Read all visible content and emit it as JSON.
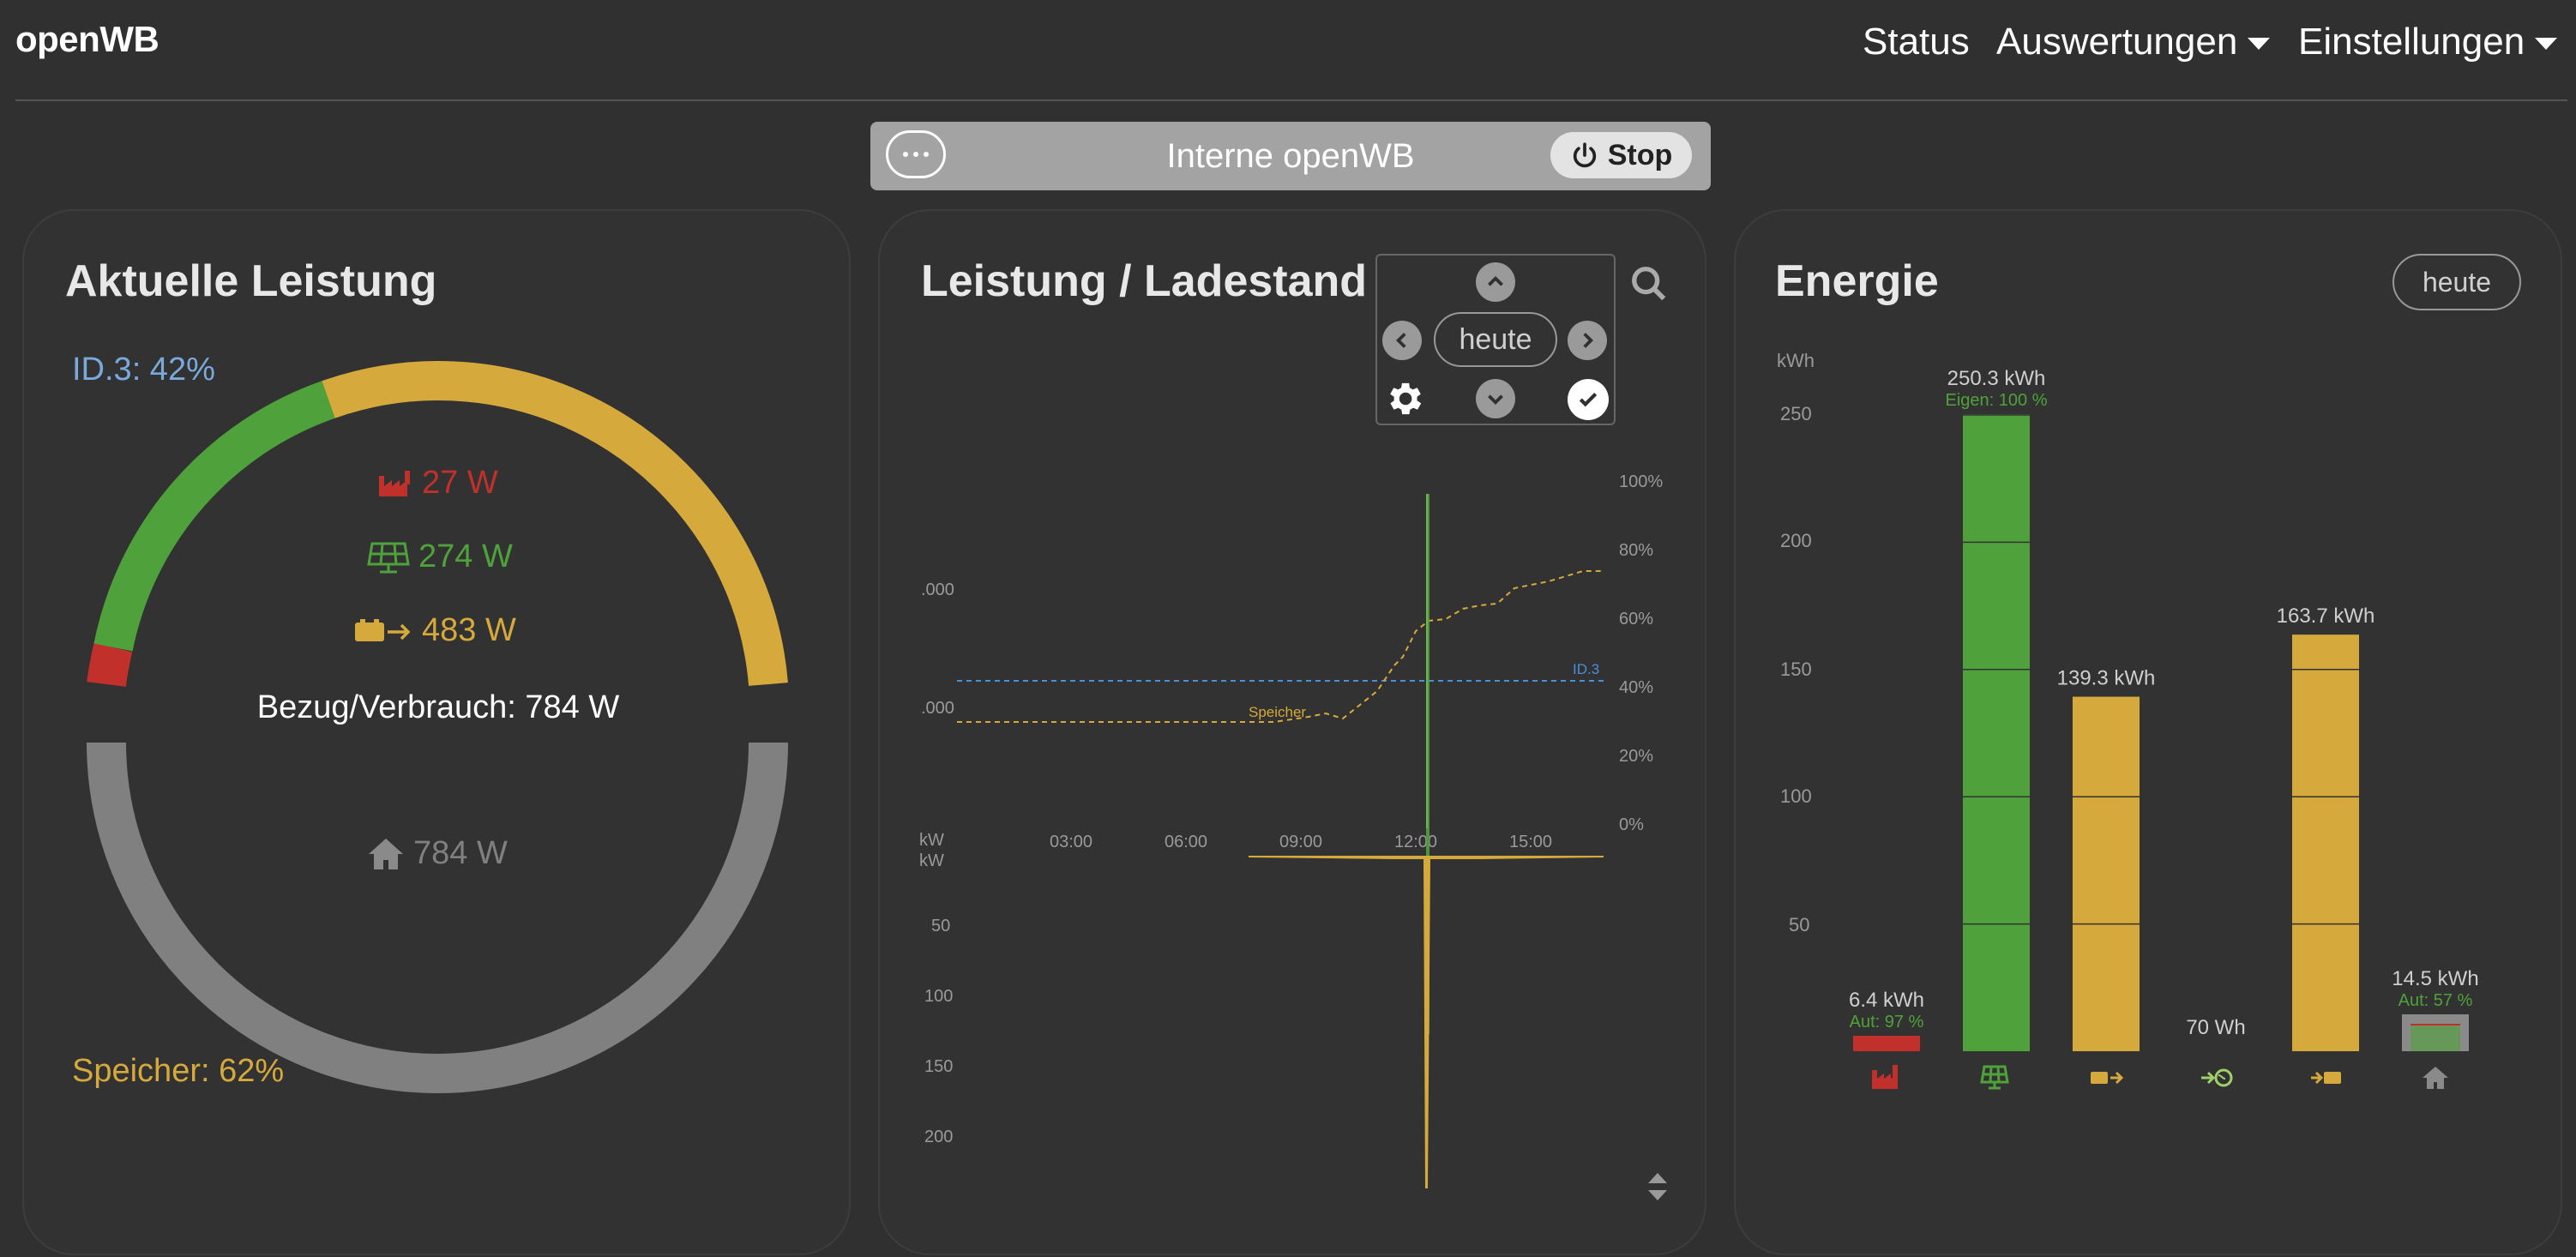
{
  "navbar": {
    "brand": "openWB",
    "status": "Status",
    "auswertungen": "Auswertungen",
    "einstellungen": "Einstellungen"
  },
  "chargepoint_bar": {
    "title": "Interne openWB",
    "stop_label": "Stop"
  },
  "power_card": {
    "title": "Aktuelle Leistung",
    "vehicle_soc": "ID.3: 42%",
    "grid": "27 W",
    "pv": "274 W",
    "battery_charge": "483 W",
    "consumption_label": "Bezug/Verbrauch: 784 W",
    "house": "784 W",
    "battery_soc": "Speicher: 62%",
    "colors": {
      "grid": "#c1302b",
      "pv": "#4fa23b",
      "battery": "#d6a93c",
      "house": "#808080",
      "vehicle": "#7aa9dc"
    }
  },
  "chart_card": {
    "title": "Leistung / Ladestand",
    "date_button": "heute",
    "upper_y_left": [
      ".000",
      ".000"
    ],
    "upper_x_ticks": [
      "03:00",
      "06:00",
      "09:00",
      "12:00",
      "15:00"
    ],
    "upper_y_right": [
      "100%",
      "80%",
      "60%",
      "40%",
      "20%",
      "0%"
    ],
    "unit_top": "kW",
    "unit_bottom": "kW",
    "lower_y": [
      "50",
      "100",
      "150",
      "200"
    ],
    "label_id3": "ID.3",
    "label_speicher": "Speicher"
  },
  "energy_card": {
    "title": "Energie",
    "period_button": "heute",
    "unit": "kWh",
    "y_ticks": [
      "250",
      "200",
      "150",
      "100",
      "50"
    ],
    "bars": [
      {
        "name": "grid",
        "value": "6.4 kWh",
        "sub": "Aut: 97 %",
        "color": "#c1302b",
        "icon": "factory-icon"
      },
      {
        "name": "pv",
        "value": "250.3 kWh",
        "sub": "Eigen: 100 %",
        "color": "#4fa23b",
        "icon": "solar-panel-icon"
      },
      {
        "name": "battery-in",
        "value": "139.3 kWh",
        "sub": "",
        "color": "#d6a93c",
        "icon": "battery-arrow-icon"
      },
      {
        "name": "export",
        "value": "70 Wh",
        "sub": "",
        "color": "#a0d06a",
        "icon": "globe-arrow-icon"
      },
      {
        "name": "battery-out",
        "value": "163.7 kWh",
        "sub": "",
        "color": "#d6a93c",
        "icon": "arrow-battery-icon"
      },
      {
        "name": "house",
        "value": "14.5 kWh",
        "sub": "Aut: 57 %",
        "color": "#8a8a8a",
        "icon": "house-icon"
      }
    ]
  },
  "chart_data": [
    {
      "type": "line",
      "title": "Leistung / Ladestand",
      "x": [
        "03:00",
        "06:00",
        "09:00",
        "12:00",
        "15:00"
      ],
      "y2_range": [
        0,
        100
      ],
      "series": [
        {
          "name": "ID.3",
          "values": [
            42,
            42,
            42,
            42,
            42
          ]
        },
        {
          "name": "Speicher",
          "values": [
            30,
            30,
            32,
            60,
            73
          ]
        }
      ]
    },
    {
      "type": "bar",
      "title": "Energie",
      "ylabel": "kWh",
      "categories": [
        "grid",
        "pv",
        "battery-in",
        "export",
        "battery-out",
        "house"
      ],
      "values": [
        6.4,
        250.3,
        139.3,
        0.07,
        163.7,
        14.5
      ],
      "ylim": [
        0,
        250
      ]
    }
  ]
}
